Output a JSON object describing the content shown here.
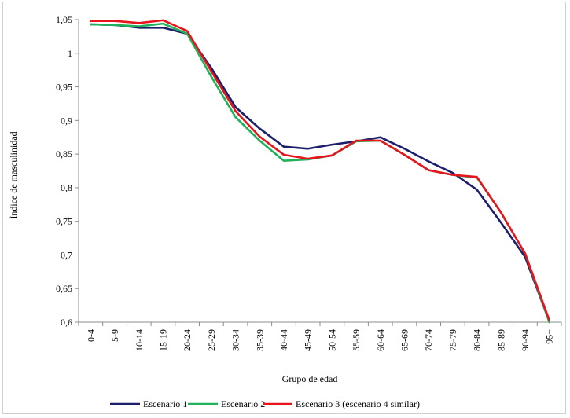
{
  "chart_data": {
    "type": "line",
    "title": "",
    "xlabel": "Grupo de edad",
    "ylabel": "Índice de masculinidad",
    "ylim": [
      0.6,
      1.05
    ],
    "y_ticks": [
      "0,6",
      "0,65",
      "0,7",
      "0,75",
      "0,8",
      "0,85",
      "0,9",
      "0,95",
      "1",
      "1,05"
    ],
    "y_tick_values": [
      0.6,
      0.65,
      0.7,
      0.75,
      0.8,
      0.85,
      0.9,
      0.95,
      1.0,
      1.05
    ],
    "categories": [
      "0-4",
      "5-9",
      "10-14",
      "15-19",
      "20-24",
      "25-29",
      "30-34",
      "35-39",
      "40-44",
      "45-49",
      "50-54",
      "55-59",
      "60-64",
      "65-69",
      "70-74",
      "75-79",
      "80-84",
      "85-89",
      "90-94",
      "95+"
    ],
    "grid": false,
    "legend": "bottom",
    "series": [
      {
        "name": "Escenario 1",
        "color": "#1b1f6b",
        "values": [
          1.043,
          1.042,
          1.038,
          1.038,
          1.029,
          0.978,
          0.92,
          0.888,
          0.861,
          0.858,
          0.864,
          0.869,
          0.875,
          0.858,
          0.839,
          0.822,
          0.797,
          0.748,
          0.697,
          0.601
        ]
      },
      {
        "name": "Escenario 2",
        "color": "#1fb25a",
        "values": [
          1.043,
          1.042,
          1.04,
          1.044,
          1.029,
          0.965,
          0.905,
          0.87,
          0.84,
          0.842,
          0.848,
          0.869,
          0.87,
          0.849,
          0.826,
          0.819,
          0.815,
          0.763,
          0.702,
          0.6
        ]
      },
      {
        "name": "Escenario 3 (escenario 4 similar)",
        "color": "#e8141c",
        "values": [
          1.048,
          1.048,
          1.045,
          1.049,
          1.033,
          0.973,
          0.914,
          0.876,
          0.849,
          0.843,
          0.848,
          0.87,
          0.87,
          0.849,
          0.826,
          0.819,
          0.816,
          0.763,
          0.702,
          0.603
        ]
      }
    ]
  }
}
